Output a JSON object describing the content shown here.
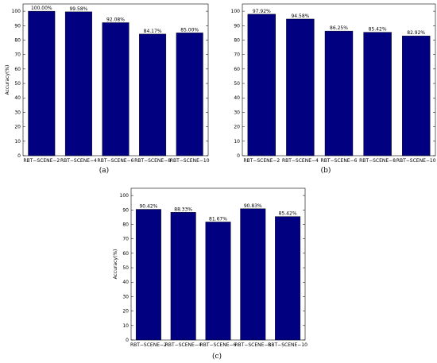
{
  "bar_color": "#000080",
  "chart_data": [
    {
      "type": "bar",
      "caption": "(a)",
      "categories": [
        "RBT−SCENE−2",
        "RBT−SCENE−4",
        "RBT−SCENE−6",
        "RBT−SCENE−8",
        "RBT−SCENE−10"
      ],
      "values": [
        100.0,
        99.58,
        92.08,
        84.17,
        85.0
      ],
      "data_labels": [
        "100.00%",
        "99.58%",
        "92.08%",
        "84.17%",
        "85.00%"
      ],
      "ylabel": "Accuracy(%)",
      "xlabel": "",
      "ylim": [
        0,
        105
      ],
      "yticks": [
        "0",
        "10",
        "20",
        "30",
        "40",
        "50",
        "60",
        "70",
        "80",
        "90",
        "100"
      ],
      "grid": false
    },
    {
      "type": "bar",
      "caption": "(b)",
      "categories": [
        "RBT−SCENE−2",
        "RBT−SCENE−4",
        "RBT−SCENE−6",
        "RBT−SCENE−8",
        "RBT−SCENE−10"
      ],
      "values": [
        97.92,
        94.58,
        86.25,
        85.42,
        82.92
      ],
      "data_labels": [
        "97.92%",
        "94.58%",
        "86.25%",
        "85.42%",
        "82.92%"
      ],
      "ylabel": "",
      "xlabel": "",
      "ylim": [
        0,
        105
      ],
      "yticks": [
        "0",
        "10",
        "20",
        "30",
        "40",
        "50",
        "60",
        "70",
        "80",
        "90",
        "100"
      ],
      "grid": false
    },
    {
      "type": "bar",
      "caption": "(c)",
      "categories": [
        "RBT−SCENE−2",
        "RBT−SCENE−4",
        "RBT−SCENE−6",
        "RBT−SCENE−8",
        "RBT−SCENE−10"
      ],
      "values": [
        90.42,
        88.33,
        81.67,
        90.83,
        85.42
      ],
      "data_labels": [
        "90.42%",
        "88.33%",
        "81.67%",
        "90.83%",
        "85.42%"
      ],
      "ylabel": "Accuracy(%)",
      "xlabel": "",
      "ylim": [
        0,
        105
      ],
      "yticks": [
        "0",
        "10",
        "20",
        "30",
        "40",
        "50",
        "60",
        "70",
        "80",
        "90",
        "100"
      ],
      "grid": false
    }
  ]
}
